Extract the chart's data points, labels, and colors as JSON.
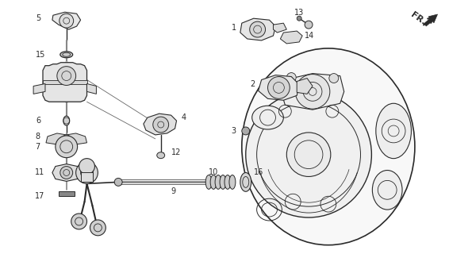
{
  "bg_color": "#ffffff",
  "line_color": "#2a2a2a",
  "fig_width": 5.66,
  "fig_height": 3.2,
  "dpi": 100
}
